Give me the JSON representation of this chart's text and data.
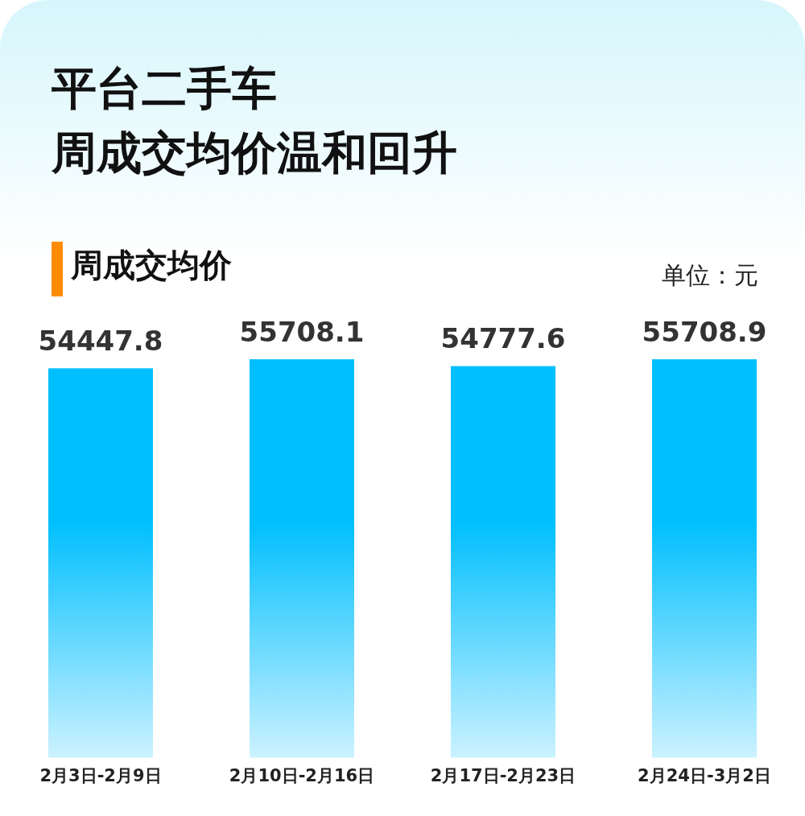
{
  "chart_data": {
    "type": "bar",
    "title": "平台二手车",
    "subtitle": "周成交均价温和回升",
    "annotations": [
      "周成交均价",
      "单位：元"
    ],
    "categories": [
      "2月3日-2月9日",
      "2月10日-2月16日",
      "2月17日-2月23日",
      "2月24日-3月2日"
    ],
    "values": [
      54447.8,
      55708.1,
      54777.6,
      55708.9
    ],
    "color": "#00bfff",
    "data_labels": true,
    "grid": false,
    "legend": false,
    "tick_labels": "x"
  }
}
